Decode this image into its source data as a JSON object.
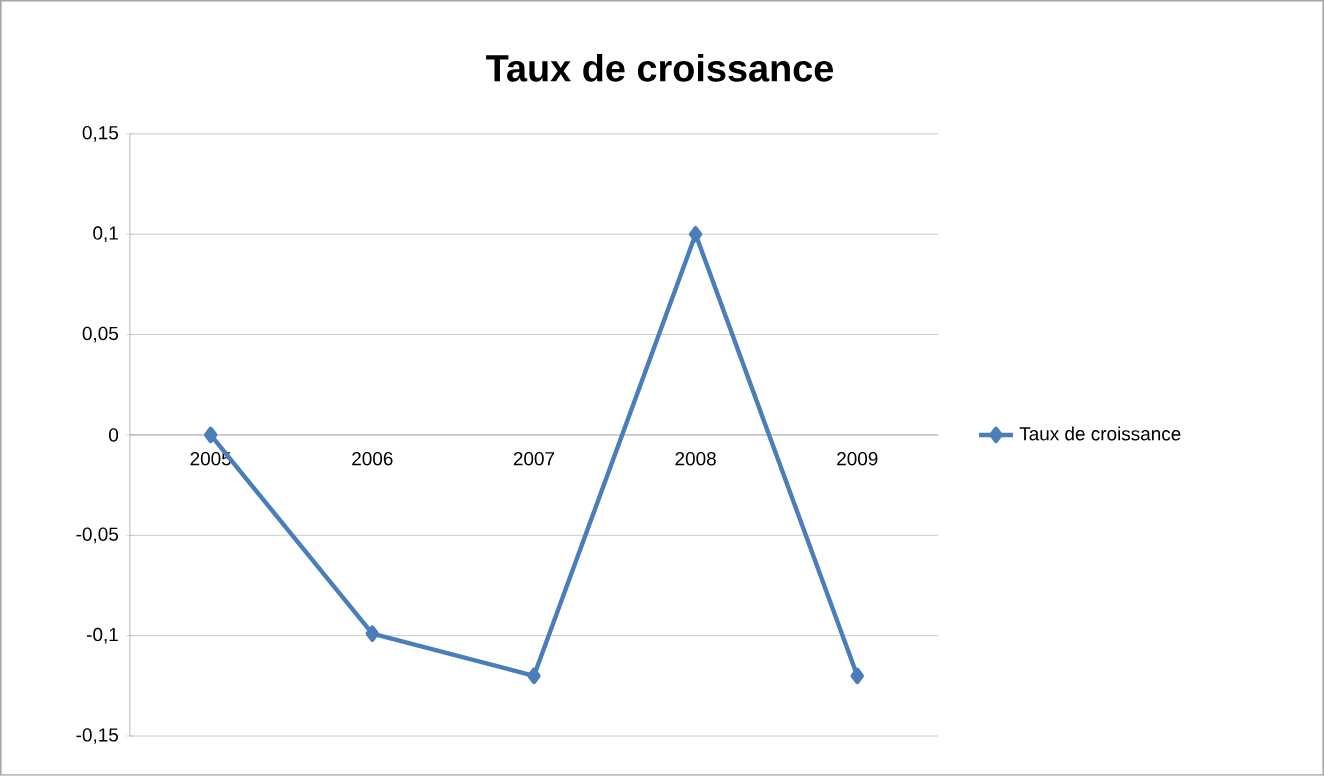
{
  "chart_data": {
    "type": "line",
    "title": "Taux de croissance",
    "categories": [
      "2005",
      "2006",
      "2007",
      "2008",
      "2009"
    ],
    "series": [
      {
        "name": "Taux de croissance",
        "color": "#4a7ebb",
        "values": [
          0,
          -0.099,
          -0.12,
          0.1,
          -0.12
        ]
      }
    ],
    "ylim": [
      -0.15,
      0.15
    ],
    "yticks": [
      {
        "value": -0.15,
        "label": "-0,15"
      },
      {
        "value": -0.1,
        "label": "-0,1"
      },
      {
        "value": -0.05,
        "label": "-0,05"
      },
      {
        "value": 0,
        "label": "0"
      },
      {
        "value": 0.05,
        "label": "0,05"
      },
      {
        "value": 0.1,
        "label": "0,1"
      },
      {
        "value": 0.15,
        "label": "0,15"
      }
    ],
    "grid": "y",
    "legend": "right",
    "marker": "diamond",
    "line_style": "solid"
  }
}
